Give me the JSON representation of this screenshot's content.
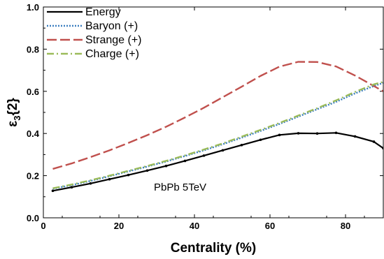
{
  "chart_data": {
    "type": "line",
    "xlabel": "Centrality (%)",
    "xlim": [
      0,
      90
    ],
    "ylim": [
      0.0,
      1.0
    ],
    "x_ticks": [
      "0",
      "20",
      "40",
      "60",
      "80"
    ],
    "y_ticks": [
      "0.0",
      "0.2",
      "0.4",
      "0.6",
      "0.8",
      "1.0"
    ],
    "annotation": "PbPb 5TeV",
    "legend_position": "top-left",
    "x": [
      2.5,
      7.5,
      12.5,
      17.5,
      22.5,
      27.5,
      32.5,
      37.5,
      42.5,
      47.5,
      52.5,
      57.5,
      62.5,
      67.5,
      72.5,
      77.5,
      82.5,
      87.5,
      90
    ],
    "series": [
      {
        "name": "Energy",
        "color": "#000000",
        "style": "solid",
        "values": [
          0.128,
          0.145,
          0.163,
          0.183,
          0.203,
          0.224,
          0.246,
          0.27,
          0.295,
          0.32,
          0.345,
          0.37,
          0.393,
          0.401,
          0.4,
          0.403,
          0.386,
          0.361,
          0.33
        ]
      },
      {
        "name": "Baryon (+)",
        "color": "#3d7fc0",
        "style": "dotted",
        "values": [
          0.138,
          0.155,
          0.175,
          0.197,
          0.22,
          0.243,
          0.267,
          0.293,
          0.32,
          0.349,
          0.38,
          0.412,
          0.445,
          0.48,
          0.515,
          0.55,
          0.59,
          0.625,
          0.64
        ]
      },
      {
        "name": "Strange (+)",
        "color": "#c0504d",
        "style": "dashed",
        "values": [
          0.232,
          0.258,
          0.288,
          0.32,
          0.355,
          0.392,
          0.432,
          0.476,
          0.522,
          0.572,
          0.622,
          0.673,
          0.717,
          0.74,
          0.739,
          0.718,
          0.675,
          0.625,
          0.6
        ]
      },
      {
        "name": "Charge (+)",
        "color": "#9bbb59",
        "style": "dashdot",
        "values": [
          0.14,
          0.158,
          0.178,
          0.2,
          0.223,
          0.246,
          0.27,
          0.296,
          0.324,
          0.353,
          0.385,
          0.417,
          0.45,
          0.485,
          0.52,
          0.557,
          0.597,
          0.633,
          0.645
        ]
      }
    ]
  }
}
